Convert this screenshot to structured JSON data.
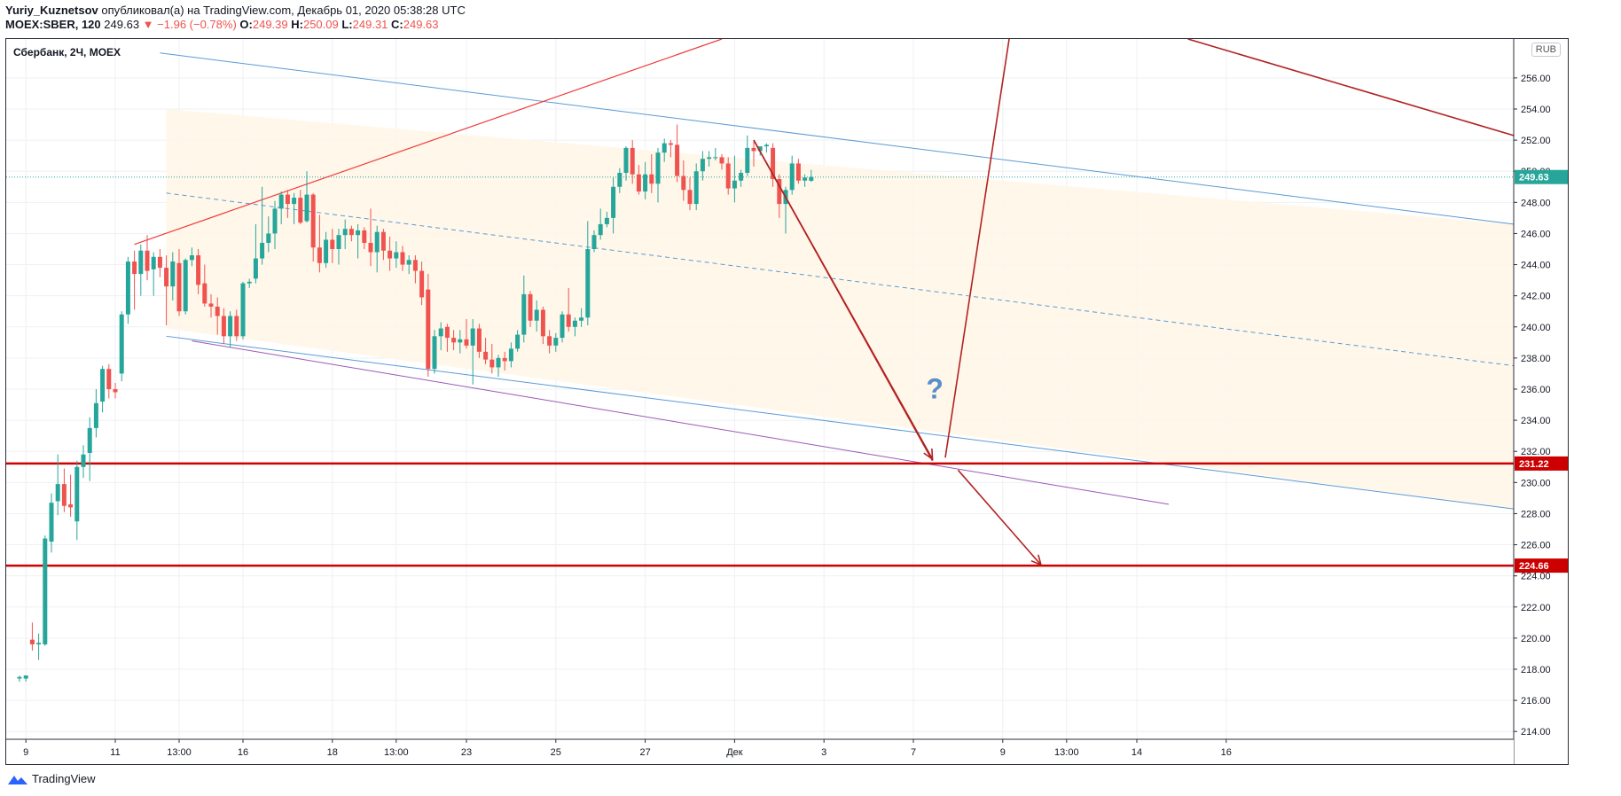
{
  "header": {
    "author": "Yuriy_Kuznetsov",
    "published": "опубликовал(а) на TradingView.com, Декабрь 01, 2020 05:38:28 UTC",
    "symbol_line": "MOEX:SBER, 120",
    "last": "249.63",
    "change": "▼ −1.96 (−0.78%)",
    "o_label": "O:",
    "o_val": "249.39",
    "h_label": "H:",
    "h_val": "250.09",
    "l_label": "L:",
    "l_val": "249.31",
    "c_label": "C:",
    "c_val": "249.63"
  },
  "chart_title": "Сбербанк, 2Ч, MOEX",
  "currency_button": "RUB",
  "footer": {
    "brand": "TradingView"
  },
  "colors": {
    "up": "#26a69a",
    "down": "#ef5350",
    "level": "#cc0000",
    "channel": "#5b9bd5",
    "arrow": "#b22222",
    "shade": "#fff6e6",
    "grid": "#eef0f3"
  },
  "chart_data": {
    "type": "candlestick",
    "title": "Сбербанк, 2Ч, MOEX",
    "ylim": [
      213.5,
      258.5
    ],
    "y_ticks": [
      214,
      216,
      218,
      220,
      222,
      224,
      226,
      228,
      230,
      232,
      234,
      236,
      238,
      240,
      242,
      244,
      246,
      248,
      250,
      252,
      254,
      256
    ],
    "x_ticks": [
      {
        "i": 1,
        "label": "9"
      },
      {
        "i": 15,
        "label": "11"
      },
      {
        "i": 25,
        "label": "13:00"
      },
      {
        "i": 35,
        "label": "16"
      },
      {
        "i": 49,
        "label": "18"
      },
      {
        "i": 59,
        "label": "13:00"
      },
      {
        "i": 70,
        "label": "23"
      },
      {
        "i": 84,
        "label": "25"
      },
      {
        "i": 98,
        "label": "27"
      },
      {
        "i": 112,
        "label": "Дек"
      },
      {
        "i": 126,
        "label": "3"
      },
      {
        "i": 140,
        "label": "7"
      },
      {
        "i": 154,
        "label": "9"
      },
      {
        "i": 164,
        "label": "13:00"
      },
      {
        "i": 175,
        "label": "14"
      },
      {
        "i": 189,
        "label": "16"
      }
    ],
    "price_labels": [
      {
        "value": 249.63,
        "text": "249.63",
        "color": "#26a69a"
      },
      {
        "value": 231.22,
        "text": "231.22",
        "color": "#cc0000"
      },
      {
        "value": 224.66,
        "text": "224.66",
        "color": "#cc0000"
      }
    ],
    "candles": [
      {
        "o": 217.4,
        "h": 217.6,
        "l": 217.2,
        "c": 217.5
      },
      {
        "o": 217.4,
        "h": 217.6,
        "l": 217.2,
        "c": 217.6
      },
      {
        "o": 219.9,
        "h": 221.0,
        "l": 219.2,
        "c": 219.6
      },
      {
        "o": 219.6,
        "h": 220.3,
        "l": 218.6,
        "c": 219.7
      },
      {
        "o": 219.6,
        "h": 226.6,
        "l": 219.5,
        "c": 226.4
      },
      {
        "o": 226.2,
        "h": 229.3,
        "l": 225.5,
        "c": 228.7
      },
      {
        "o": 228.8,
        "h": 231.8,
        "l": 227.9,
        "c": 229.9
      },
      {
        "o": 229.9,
        "h": 230.9,
        "l": 228.1,
        "c": 228.5
      },
      {
        "o": 228.6,
        "h": 230.5,
        "l": 227.8,
        "c": 228.4
      },
      {
        "o": 227.5,
        "h": 231.4,
        "l": 226.3,
        "c": 231.0
      },
      {
        "o": 231.0,
        "h": 232.4,
        "l": 230.3,
        "c": 231.8
      },
      {
        "o": 231.9,
        "h": 234.2,
        "l": 230.1,
        "c": 233.5
      },
      {
        "o": 233.5,
        "h": 236.0,
        "l": 232.9,
        "c": 235.1
      },
      {
        "o": 235.2,
        "h": 237.5,
        "l": 234.5,
        "c": 237.3
      },
      {
        "o": 237.3,
        "h": 237.6,
        "l": 235.4,
        "c": 236.0
      },
      {
        "o": 236.0,
        "h": 236.4,
        "l": 235.4,
        "c": 235.8
      },
      {
        "o": 237.0,
        "h": 241.0,
        "l": 236.5,
        "c": 240.8
      },
      {
        "o": 240.8,
        "h": 244.5,
        "l": 240.2,
        "c": 244.2
      },
      {
        "o": 244.2,
        "h": 244.9,
        "l": 241.1,
        "c": 243.4
      },
      {
        "o": 243.4,
        "h": 245.3,
        "l": 242.0,
        "c": 244.9
      },
      {
        "o": 244.9,
        "h": 245.9,
        "l": 243.0,
        "c": 243.6
      },
      {
        "o": 243.7,
        "h": 244.8,
        "l": 242.0,
        "c": 244.5
      },
      {
        "o": 244.5,
        "h": 245.0,
        "l": 243.2,
        "c": 243.8
      },
      {
        "o": 243.8,
        "h": 244.6,
        "l": 240.1,
        "c": 242.6
      },
      {
        "o": 242.6,
        "h": 244.8,
        "l": 241.7,
        "c": 244.2
      },
      {
        "o": 244.1,
        "h": 245.0,
        "l": 240.7,
        "c": 241.0
      },
      {
        "o": 241.0,
        "h": 244.4,
        "l": 240.8,
        "c": 244.3
      },
      {
        "o": 244.3,
        "h": 245.1,
        "l": 243.9,
        "c": 244.6
      },
      {
        "o": 244.6,
        "h": 245.0,
        "l": 242.1,
        "c": 242.7
      },
      {
        "o": 242.8,
        "h": 244.0,
        "l": 241.3,
        "c": 241.5
      },
      {
        "o": 241.5,
        "h": 242.1,
        "l": 240.6,
        "c": 241.3
      },
      {
        "o": 241.3,
        "h": 241.9,
        "l": 239.5,
        "c": 240.7
      },
      {
        "o": 240.7,
        "h": 241.2,
        "l": 238.9,
        "c": 239.4
      },
      {
        "o": 239.4,
        "h": 241.0,
        "l": 238.7,
        "c": 240.7
      },
      {
        "o": 240.7,
        "h": 241.1,
        "l": 239.1,
        "c": 239.4
      },
      {
        "o": 239.4,
        "h": 242.9,
        "l": 239.2,
        "c": 242.8
      },
      {
        "o": 242.8,
        "h": 243.1,
        "l": 242.5,
        "c": 242.9
      },
      {
        "o": 243.1,
        "h": 246.6,
        "l": 242.8,
        "c": 244.4
      },
      {
        "o": 244.4,
        "h": 249.0,
        "l": 244.0,
        "c": 245.4
      },
      {
        "o": 245.4,
        "h": 247.1,
        "l": 244.8,
        "c": 246.0
      },
      {
        "o": 246.0,
        "h": 248.1,
        "l": 245.0,
        "c": 247.6
      },
      {
        "o": 247.6,
        "h": 248.7,
        "l": 246.6,
        "c": 248.5
      },
      {
        "o": 248.5,
        "h": 248.8,
        "l": 247.0,
        "c": 247.9
      },
      {
        "o": 247.9,
        "h": 248.6,
        "l": 246.6,
        "c": 248.3
      },
      {
        "o": 248.3,
        "h": 248.8,
        "l": 246.6,
        "c": 246.7
      },
      {
        "o": 246.8,
        "h": 250.0,
        "l": 246.7,
        "c": 248.5
      },
      {
        "o": 248.5,
        "h": 248.6,
        "l": 244.2,
        "c": 245.1
      },
      {
        "o": 245.1,
        "h": 247.2,
        "l": 243.5,
        "c": 244.1
      },
      {
        "o": 244.1,
        "h": 246.1,
        "l": 243.8,
        "c": 245.6
      },
      {
        "o": 245.6,
        "h": 246.3,
        "l": 244.1,
        "c": 245.0
      },
      {
        "o": 245.0,
        "h": 246.3,
        "l": 244.0,
        "c": 245.9
      },
      {
        "o": 245.9,
        "h": 246.9,
        "l": 245.0,
        "c": 246.3
      },
      {
        "o": 246.3,
        "h": 246.5,
        "l": 245.5,
        "c": 245.9
      },
      {
        "o": 245.9,
        "h": 246.6,
        "l": 244.4,
        "c": 246.2
      },
      {
        "o": 246.2,
        "h": 246.4,
        "l": 245.0,
        "c": 245.4
      },
      {
        "o": 245.4,
        "h": 247.6,
        "l": 243.9,
        "c": 244.8
      },
      {
        "o": 244.8,
        "h": 246.5,
        "l": 243.5,
        "c": 246.1
      },
      {
        "o": 246.1,
        "h": 246.3,
        "l": 244.3,
        "c": 244.9
      },
      {
        "o": 244.9,
        "h": 245.8,
        "l": 243.6,
        "c": 244.4
      },
      {
        "o": 244.4,
        "h": 245.5,
        "l": 243.8,
        "c": 244.8
      },
      {
        "o": 244.8,
        "h": 245.2,
        "l": 243.6,
        "c": 244.0
      },
      {
        "o": 244.0,
        "h": 244.6,
        "l": 243.4,
        "c": 244.3
      },
      {
        "o": 244.3,
        "h": 244.6,
        "l": 242.8,
        "c": 243.6
      },
      {
        "o": 243.6,
        "h": 244.2,
        "l": 241.4,
        "c": 241.9
      },
      {
        "o": 242.4,
        "h": 243.4,
        "l": 236.8,
        "c": 237.3
      },
      {
        "o": 237.3,
        "h": 239.8,
        "l": 237.0,
        "c": 239.4
      },
      {
        "o": 239.4,
        "h": 240.3,
        "l": 238.5,
        "c": 239.9
      },
      {
        "o": 240.0,
        "h": 240.2,
        "l": 238.4,
        "c": 239.3
      },
      {
        "o": 239.3,
        "h": 239.8,
        "l": 238.5,
        "c": 239.0
      },
      {
        "o": 239.0,
        "h": 239.8,
        "l": 238.3,
        "c": 239.2
      },
      {
        "o": 239.2,
        "h": 240.5,
        "l": 238.6,
        "c": 238.8
      },
      {
        "o": 238.8,
        "h": 240.5,
        "l": 236.3,
        "c": 239.9
      },
      {
        "o": 239.9,
        "h": 240.2,
        "l": 238.0,
        "c": 238.4
      },
      {
        "o": 238.4,
        "h": 239.3,
        "l": 237.6,
        "c": 237.9
      },
      {
        "o": 237.9,
        "h": 238.9,
        "l": 237.0,
        "c": 237.4
      },
      {
        "o": 237.4,
        "h": 238.2,
        "l": 236.8,
        "c": 238.0
      },
      {
        "o": 238.0,
        "h": 238.4,
        "l": 237.2,
        "c": 237.8
      },
      {
        "o": 237.8,
        "h": 239.0,
        "l": 237.4,
        "c": 238.6
      },
      {
        "o": 238.6,
        "h": 239.8,
        "l": 238.4,
        "c": 239.5
      },
      {
        "o": 239.5,
        "h": 243.3,
        "l": 239.0,
        "c": 242.1
      },
      {
        "o": 242.1,
        "h": 242.3,
        "l": 240.0,
        "c": 240.4
      },
      {
        "o": 240.4,
        "h": 241.7,
        "l": 239.7,
        "c": 241.1
      },
      {
        "o": 241.1,
        "h": 241.3,
        "l": 238.9,
        "c": 239.4
      },
      {
        "o": 239.4,
        "h": 239.8,
        "l": 238.3,
        "c": 238.8
      },
      {
        "o": 238.8,
        "h": 239.6,
        "l": 238.4,
        "c": 239.3
      },
      {
        "o": 239.3,
        "h": 241.0,
        "l": 239.0,
        "c": 240.8
      },
      {
        "o": 240.8,
        "h": 242.5,
        "l": 239.7,
        "c": 240.0
      },
      {
        "o": 240.0,
        "h": 240.6,
        "l": 239.4,
        "c": 240.4
      },
      {
        "o": 240.4,
        "h": 241.2,
        "l": 240.0,
        "c": 240.6
      },
      {
        "o": 240.6,
        "h": 246.8,
        "l": 240.1,
        "c": 245.0
      },
      {
        "o": 245.0,
        "h": 246.2,
        "l": 244.8,
        "c": 245.9
      },
      {
        "o": 245.9,
        "h": 247.6,
        "l": 245.6,
        "c": 246.6
      },
      {
        "o": 246.6,
        "h": 247.4,
        "l": 246.4,
        "c": 247.0
      },
      {
        "o": 247.0,
        "h": 249.6,
        "l": 246.0,
        "c": 249.0
      },
      {
        "o": 249.0,
        "h": 250.2,
        "l": 248.6,
        "c": 249.9
      },
      {
        "o": 249.9,
        "h": 251.6,
        "l": 249.4,
        "c": 251.5
      },
      {
        "o": 251.5,
        "h": 252.0,
        "l": 249.2,
        "c": 249.8
      },
      {
        "o": 249.8,
        "h": 250.4,
        "l": 248.5,
        "c": 248.7
      },
      {
        "o": 248.7,
        "h": 250.6,
        "l": 248.2,
        "c": 249.8
      },
      {
        "o": 249.8,
        "h": 251.1,
        "l": 248.6,
        "c": 249.2
      },
      {
        "o": 249.2,
        "h": 251.5,
        "l": 248.0,
        "c": 251.2
      },
      {
        "o": 251.2,
        "h": 252.1,
        "l": 250.6,
        "c": 251.8
      },
      {
        "o": 251.8,
        "h": 252.0,
        "l": 250.9,
        "c": 251.7
      },
      {
        "o": 251.7,
        "h": 253.0,
        "l": 249.3,
        "c": 249.7
      },
      {
        "o": 249.7,
        "h": 250.7,
        "l": 248.1,
        "c": 248.8
      },
      {
        "o": 248.8,
        "h": 249.6,
        "l": 247.5,
        "c": 247.9
      },
      {
        "o": 247.9,
        "h": 250.5,
        "l": 247.5,
        "c": 250.0
      },
      {
        "o": 250.0,
        "h": 251.3,
        "l": 249.4,
        "c": 250.8
      },
      {
        "o": 250.8,
        "h": 251.3,
        "l": 250.3,
        "c": 250.9
      },
      {
        "o": 250.9,
        "h": 251.5,
        "l": 250.7,
        "c": 250.9
      },
      {
        "o": 250.9,
        "h": 251.1,
        "l": 250.1,
        "c": 250.5
      },
      {
        "o": 250.5,
        "h": 250.9,
        "l": 248.5,
        "c": 248.9
      },
      {
        "o": 248.9,
        "h": 251.0,
        "l": 248.0,
        "c": 249.4
      },
      {
        "o": 249.4,
        "h": 250.1,
        "l": 249.0,
        "c": 249.9
      },
      {
        "o": 249.9,
        "h": 252.3,
        "l": 249.7,
        "c": 251.5
      },
      {
        "o": 251.5,
        "h": 251.9,
        "l": 250.3,
        "c": 251.3
      },
      {
        "o": 251.3,
        "h": 251.6,
        "l": 251.0,
        "c": 251.6
      },
      {
        "o": 251.6,
        "h": 251.8,
        "l": 251.2,
        "c": 251.7
      },
      {
        "o": 251.5,
        "h": 251.8,
        "l": 249.0,
        "c": 249.5
      },
      {
        "o": 249.5,
        "h": 249.8,
        "l": 247.0,
        "c": 247.9
      },
      {
        "o": 247.9,
        "h": 249.0,
        "l": 246.0,
        "c": 248.8
      },
      {
        "o": 248.8,
        "h": 251.0,
        "l": 248.5,
        "c": 250.5
      },
      {
        "o": 250.5,
        "h": 250.8,
        "l": 249.2,
        "c": 249.4
      },
      {
        "o": 249.4,
        "h": 249.8,
        "l": 249.0,
        "c": 249.6
      },
      {
        "o": 249.39,
        "h": 250.09,
        "l": 249.31,
        "c": 249.63
      }
    ]
  }
}
